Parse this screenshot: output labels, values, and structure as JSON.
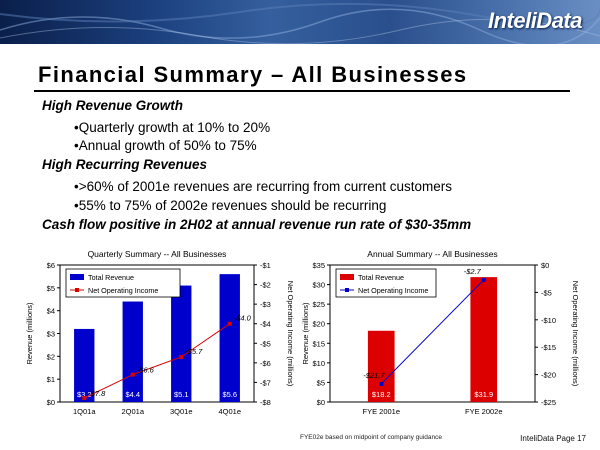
{
  "brand": {
    "logo_text": "InteliData"
  },
  "slide": {
    "title": "Financial Summary – All Businesses",
    "bullets": [
      {
        "level": 1,
        "text": "High Revenue Growth"
      },
      {
        "level": 2,
        "text": "•Quarterly growth at 10% to 20%"
      },
      {
        "level": 2,
        "text": "•Annual growth of 50% to 75%"
      },
      {
        "level": 1,
        "text": "High Recurring Revenues"
      },
      {
        "level": 2,
        "text": "•>60% of 2001e revenues are recurring from current customers"
      },
      {
        "level": 2,
        "text": "•55% to 75% of 2002e revenues should be recurring"
      },
      {
        "level": 1,
        "text": "Cash flow positive in 2H02 at annual revenue run rate of $30-35mm"
      }
    ],
    "footnote": "FYE02e based on midpoint of company guidance",
    "footer": "InteliData  Page 17"
  },
  "chart_data": [
    {
      "type": "bar",
      "title": "Quarterly Summary -- All Businesses",
      "categories": [
        "1Q01a",
        "2Q01a",
        "3Q01e",
        "4Q01e"
      ],
      "ylabel": "Revenue (millions)",
      "y2label": "Net Operating Income (millions)",
      "ylim": [
        0,
        6
      ],
      "y2lim": [
        -8,
        -1
      ],
      "yticks": [
        "$0",
        "$1",
        "$2",
        "$3",
        "$4",
        "$5",
        "$6"
      ],
      "y2ticks": [
        "-$1",
        "-$2",
        "-$3",
        "-$4",
        "-$5",
        "-$6",
        "-$7",
        "-$8"
      ],
      "series": [
        {
          "name": "Total Revenue",
          "kind": "bar",
          "axis": "left",
          "color": "#0000cc",
          "values": [
            3.2,
            4.4,
            5.1,
            5.6
          ],
          "labels": [
            "$3.2",
            "$4.4",
            "$5.1",
            "$5.6"
          ]
        },
        {
          "name": "Net Operating Income",
          "kind": "line",
          "axis": "right",
          "color": "#dd0000",
          "values": [
            -7.8,
            -6.6,
            -5.7,
            -4.0
          ],
          "labels": [
            "-$7.8",
            "-$6.6",
            "-$5.7",
            "-$4.0"
          ]
        }
      ],
      "legend": "top-left"
    },
    {
      "type": "bar",
      "title": "Annual Summary -- All Businesses",
      "categories": [
        "FYE 2001e",
        "FYE 2002e"
      ],
      "ylabel": "Revenue (millions)",
      "y2label": "Net Operating Income (millions)",
      "ylim": [
        0,
        35
      ],
      "y2lim": [
        -25,
        0
      ],
      "yticks": [
        "$0",
        "$5",
        "$10",
        "$15",
        "$20",
        "$25",
        "$30",
        "$35"
      ],
      "y2ticks": [
        "$0",
        "-$5",
        "-$10",
        "-$15",
        "-$20",
        "-$25"
      ],
      "series": [
        {
          "name": "Total Revenue",
          "kind": "bar",
          "axis": "left",
          "color": "#dd0000",
          "values": [
            18.2,
            31.9
          ],
          "labels": [
            "$18.2",
            "$31.9"
          ]
        },
        {
          "name": "Net Operating Income",
          "kind": "line",
          "axis": "right",
          "color": "#0000cc",
          "values": [
            -21.7,
            -2.7
          ],
          "labels": [
            "-$21.7",
            "-$2.7"
          ]
        }
      ],
      "legend": "top-left"
    }
  ]
}
